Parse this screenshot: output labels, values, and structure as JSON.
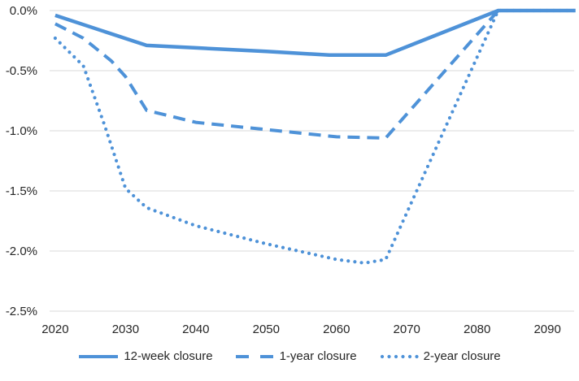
{
  "chart_data": {
    "type": "line",
    "title": "",
    "xlabel": "",
    "ylabel": "",
    "unit": "percent of baseline",
    "grid": "horizontal",
    "legend_position": "bottom",
    "xlim": [
      2019.2,
      2093.8
    ],
    "ylim": [
      -2.5,
      0
    ],
    "x_ticks": [
      "2020",
      "2030",
      "2040",
      "2050",
      "2060",
      "2070",
      "2080",
      "2090"
    ],
    "x_tick_values": [
      2020,
      2030,
      2040,
      2050,
      2060,
      2070,
      2080,
      2090
    ],
    "y_ticks": [
      "0.0%",
      "-0.5%",
      "-1.0%",
      "-1.5%",
      "-2.0%",
      "-2.5%"
    ],
    "y_tick_values": [
      0,
      -0.5,
      -1.0,
      -1.5,
      -2.0,
      -2.5
    ],
    "series": [
      {
        "name": "12-week closure",
        "style": "solid",
        "x": [
          2020,
          2033,
          2040,
          2050,
          2059,
          2067,
          2083,
          2094
        ],
        "values": [
          -0.04,
          -0.29,
          -0.31,
          -0.34,
          -0.37,
          -0.37,
          0.0,
          0.0
        ]
      },
      {
        "name": "1-year closure",
        "style": "dashed",
        "x": [
          2020,
          2024,
          2028,
          2030,
          2033,
          2040,
          2050,
          2060,
          2067,
          2083,
          2094
        ],
        "values": [
          -0.11,
          -0.23,
          -0.42,
          -0.55,
          -0.83,
          -0.93,
          -0.99,
          -1.05,
          -1.06,
          0.0,
          0.0
        ]
      },
      {
        "name": "2-year closure",
        "style": "dotted",
        "x": [
          2020,
          2024,
          2027,
          2030,
          2033,
          2040,
          2050,
          2060,
          2064,
          2067,
          2083,
          2094
        ],
        "values": [
          -0.23,
          -0.46,
          -0.95,
          -1.48,
          -1.64,
          -1.79,
          -1.94,
          -2.07,
          -2.1,
          -2.07,
          0.0,
          0.0
        ]
      }
    ],
    "colors": {
      "line": "#4e92d8",
      "grid": "#d9d9d9",
      "text": "#262626",
      "background": "#ffffff"
    }
  }
}
